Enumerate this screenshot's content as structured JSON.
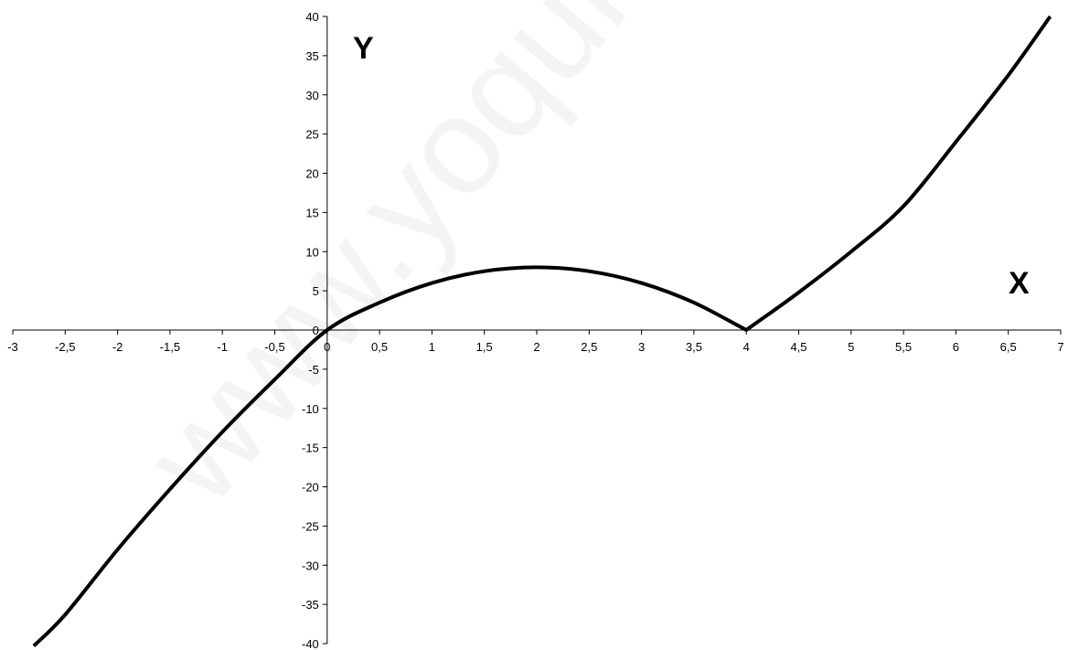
{
  "watermark": "www.yoquiero",
  "chart_data": {
    "type": "line",
    "title": "",
    "xlabel": "X",
    "ylabel": "Y",
    "xlim": [
      -3,
      7
    ],
    "ylim": [
      -40,
      40
    ],
    "grid": false,
    "x_ticks": [
      -3,
      -2.5,
      -2,
      -1.5,
      -1,
      -0.5,
      0,
      0.5,
      1,
      1.5,
      2,
      2.5,
      3,
      3.5,
      4,
      4.5,
      5,
      5.5,
      6,
      6.5,
      7
    ],
    "x_tick_labels": [
      "-3",
      "-2,5",
      "-2",
      "-1,5",
      "-1",
      "-0,5",
      "0",
      "0,5",
      "1",
      "1,5",
      "2",
      "2,5",
      "3",
      "3,5",
      "4",
      "4,5",
      "5",
      "5,5",
      "6",
      "6,5",
      "7"
    ],
    "y_ticks": [
      -40,
      -35,
      -30,
      -25,
      -20,
      -15,
      -10,
      -5,
      0,
      5,
      10,
      15,
      20,
      25,
      30,
      35,
      40
    ],
    "y_tick_labels": [
      "-40",
      "-35",
      "-30",
      "-25",
      "-20",
      "-15",
      "-10",
      "-5",
      "0",
      "5",
      "10",
      "15",
      "20",
      "25",
      "30",
      "35",
      "40"
    ],
    "series": [
      {
        "color": "#000000",
        "x": [
          -2.8,
          -2.5,
          -2,
          -1.5,
          -1,
          -0.5,
          0,
          0.5,
          1,
          1.5,
          2,
          2.5,
          3,
          3.5,
          4,
          4.5,
          5,
          5.5,
          6,
          6.5,
          6.9
        ],
        "y": [
          -40.3,
          -36.3,
          -28,
          -20.3,
          -13,
          -6.3,
          0,
          3.5,
          6,
          7.5,
          8,
          7.5,
          6,
          3.5,
          0,
          4.8,
          10,
          15.8,
          24,
          32.5,
          40
        ]
      }
    ]
  }
}
